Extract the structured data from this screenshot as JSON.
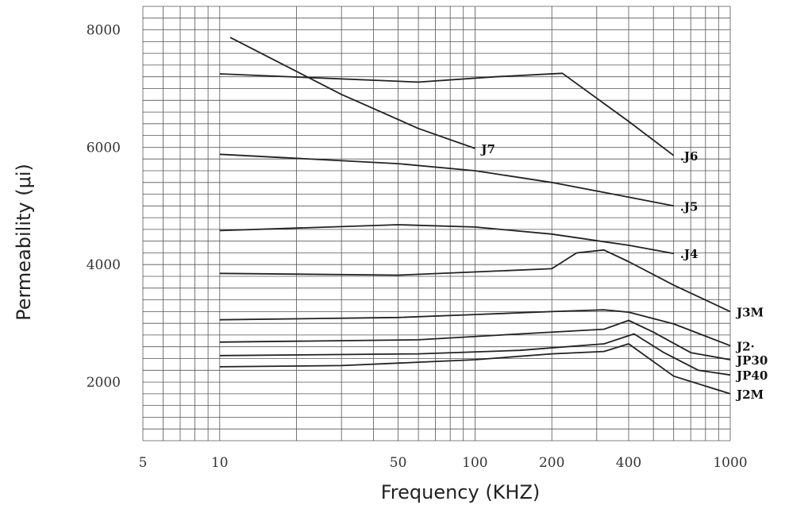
{
  "chart_data": {
    "type": "line",
    "title": "",
    "xlabel": "Frequency (KHZ)",
    "ylabel": "Permeability (μi)",
    "x_scale": "log",
    "xlim": [
      5,
      1000
    ],
    "ylim": [
      1000,
      8400
    ],
    "x_ticks": [
      {
        "value": 5,
        "label": "5"
      },
      {
        "value": 10,
        "label": "10"
      },
      {
        "value": 50,
        "label": "50"
      },
      {
        "value": 100,
        "label": "100"
      },
      {
        "value": 200,
        "label": "200"
      },
      {
        "value": 400,
        "label": "400"
      },
      {
        "value": 1000,
        "label": "1000"
      }
    ],
    "y_ticks": [
      {
        "value": 2000,
        "label": "2000"
      },
      {
        "value": 4000,
        "label": "4000"
      },
      {
        "value": 6000,
        "label": "6000"
      },
      {
        "value": 8000,
        "label": "8000"
      }
    ],
    "grid": true,
    "legend": "none",
    "series": [
      {
        "name": "J7",
        "points": [
          [
            11,
            7870
          ],
          [
            30,
            6900
          ],
          [
            60,
            6320
          ],
          [
            100,
            5980
          ]
        ]
      },
      {
        "name": "J6",
        "points": [
          [
            10,
            7250
          ],
          [
            60,
            7110
          ],
          [
            120,
            7200
          ],
          [
            220,
            7260
          ],
          [
            400,
            6440
          ],
          [
            600,
            5860
          ]
        ]
      },
      {
        "name": "J5",
        "points": [
          [
            10,
            5880
          ],
          [
            50,
            5720
          ],
          [
            100,
            5600
          ],
          [
            200,
            5400
          ],
          [
            400,
            5150
          ],
          [
            600,
            5000
          ]
        ]
      },
      {
        "name": "J4",
        "points": [
          [
            10,
            4580
          ],
          [
            50,
            4680
          ],
          [
            100,
            4640
          ],
          [
            200,
            4520
          ],
          [
            400,
            4330
          ],
          [
            600,
            4190
          ]
        ]
      },
      {
        "name": "J3M",
        "points": [
          [
            10,
            3850
          ],
          [
            50,
            3820
          ],
          [
            120,
            3890
          ],
          [
            200,
            3930
          ],
          [
            250,
            4200
          ],
          [
            320,
            4250
          ],
          [
            400,
            4050
          ],
          [
            600,
            3650
          ],
          [
            1000,
            3200
          ]
        ]
      },
      {
        "name": "J2",
        "points": [
          [
            10,
            3060
          ],
          [
            50,
            3100
          ],
          [
            100,
            3150
          ],
          [
            200,
            3200
          ],
          [
            320,
            3230
          ],
          [
            400,
            3190
          ],
          [
            600,
            2990
          ],
          [
            1000,
            2620
          ]
        ]
      },
      {
        "name": "JP30",
        "points": [
          [
            10,
            2680
          ],
          [
            60,
            2720
          ],
          [
            150,
            2820
          ],
          [
            320,
            2900
          ],
          [
            400,
            3050
          ],
          [
            500,
            2850
          ],
          [
            700,
            2500
          ],
          [
            1000,
            2380
          ]
        ]
      },
      {
        "name": "JP40",
        "points": [
          [
            10,
            2450
          ],
          [
            60,
            2480
          ],
          [
            150,
            2540
          ],
          [
            320,
            2650
          ],
          [
            420,
            2820
          ],
          [
            550,
            2500
          ],
          [
            750,
            2200
          ],
          [
            1000,
            2120
          ]
        ]
      },
      {
        "name": "J2M",
        "points": [
          [
            10,
            2260
          ],
          [
            30,
            2280
          ],
          [
            100,
            2380
          ],
          [
            200,
            2480
          ],
          [
            320,
            2520
          ],
          [
            400,
            2650
          ],
          [
            600,
            2100
          ],
          [
            1000,
            1800
          ]
        ]
      }
    ],
    "labels": [
      {
        "text": "J7",
        "series": "J7"
      },
      {
        "text": ".J6",
        "series": "J6"
      },
      {
        "text": ".J5",
        "series": "J5"
      },
      {
        "text": ".J4",
        "series": "J4"
      },
      {
        "text": "J3M",
        "series": "J3M"
      },
      {
        "text": "J2·",
        "series": "J2"
      },
      {
        "text": "JP30",
        "series": "JP30"
      },
      {
        "text": "JP40",
        "series": "JP40"
      },
      {
        "text": "J2M",
        "series": "J2M"
      }
    ]
  }
}
